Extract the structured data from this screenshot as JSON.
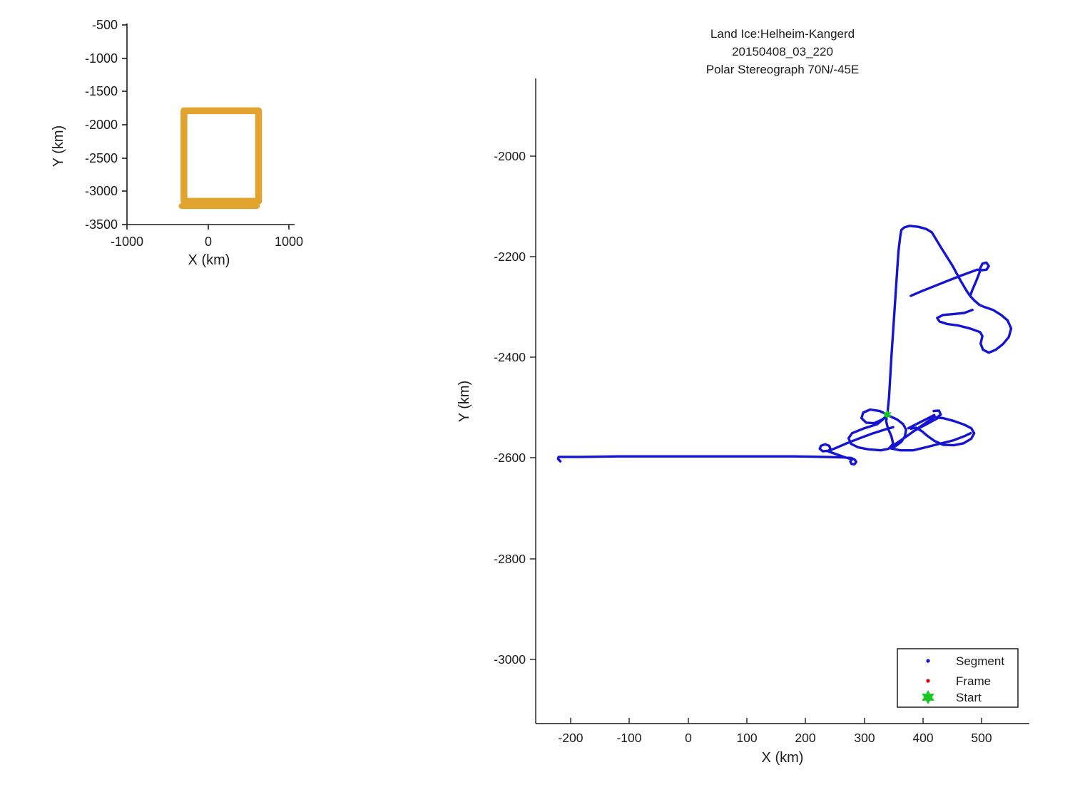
{
  "figure": {
    "background": "#ffffff"
  },
  "legend": {
    "items": [
      {
        "label": "Segment",
        "marker": "dot",
        "color": "#0f0fd8"
      },
      {
        "label": "Frame",
        "marker": "dot",
        "color": "#e00000"
      },
      {
        "label": "Start",
        "marker": "hexagram",
        "color": "#14c81f"
      }
    ]
  },
  "chart_data": {
    "type": "line",
    "main_plot": {
      "title": [
        "Land Ice:Helheim-Kangerd",
        "20150408_03_220",
        "Polar Stereograph 70N/-45E"
      ],
      "xlabel": "X (km)",
      "ylabel": "Y (km)",
      "xlim": [
        -260,
        581
      ],
      "ylim": [
        -3128,
        -1846
      ],
      "xticks": [
        -200,
        -100,
        0,
        100,
        200,
        300,
        400,
        500
      ],
      "yticks": [
        -2000,
        -2200,
        -2400,
        -2600,
        -2800,
        -3000
      ],
      "grid": false,
      "legend_position": "lower right",
      "track_color": "#1414d2",
      "start_color": "#14c81f",
      "start_point_km": [
        339,
        -2514
      ],
      "segment_polylines_km": [
        [
          [
            -218,
            -2607
          ],
          [
            -222,
            -2602
          ],
          [
            -221,
            -2598
          ],
          [
            -180,
            -2598
          ],
          [
            -120,
            -2597
          ],
          [
            -60,
            -2597
          ],
          [
            0,
            -2597
          ],
          [
            60,
            -2597
          ],
          [
            120,
            -2597
          ],
          [
            180,
            -2597
          ],
          [
            230,
            -2598
          ],
          [
            262,
            -2599
          ],
          [
            277,
            -2600
          ],
          [
            283,
            -2603
          ],
          [
            286,
            -2608
          ],
          [
            283,
            -2613
          ],
          [
            278,
            -2612
          ],
          [
            276,
            -2607
          ],
          [
            279,
            -2603
          ],
          [
            270,
            -2600
          ],
          [
            255,
            -2594
          ],
          [
            243,
            -2589
          ],
          [
            236,
            -2586
          ],
          [
            229,
            -2587
          ],
          [
            224,
            -2582
          ],
          [
            226,
            -2576
          ],
          [
            233,
            -2573
          ],
          [
            240,
            -2576
          ],
          [
            242,
            -2582
          ],
          [
            239,
            -2586
          ],
          [
            252,
            -2580
          ],
          [
            270,
            -2571
          ],
          [
            292,
            -2561
          ],
          [
            315,
            -2551
          ],
          [
            337,
            -2543
          ],
          [
            349,
            -2539
          ]
        ],
        [
          [
            339,
            -2514
          ],
          [
            326,
            -2507
          ],
          [
            310,
            -2504
          ],
          [
            298,
            -2510
          ],
          [
            295,
            -2521
          ],
          [
            303,
            -2530
          ],
          [
            317,
            -2531
          ],
          [
            330,
            -2524
          ],
          [
            338,
            -2517
          ],
          [
            322,
            -2533
          ],
          [
            298,
            -2542
          ],
          [
            279,
            -2551
          ],
          [
            273,
            -2561
          ],
          [
            277,
            -2572
          ],
          [
            289,
            -2579
          ],
          [
            307,
            -2583
          ],
          [
            328,
            -2585
          ],
          [
            341,
            -2582
          ],
          [
            349,
            -2572
          ],
          [
            346,
            -2557
          ],
          [
            340,
            -2541
          ],
          [
            337,
            -2527
          ],
          [
            339,
            -2516
          ]
        ],
        [
          [
            343,
            -2517
          ],
          [
            356,
            -2524
          ],
          [
            366,
            -2533
          ],
          [
            371,
            -2544
          ],
          [
            369,
            -2557
          ],
          [
            363,
            -2568
          ],
          [
            354,
            -2576
          ],
          [
            345,
            -2581
          ],
          [
            361,
            -2585
          ],
          [
            383,
            -2585
          ],
          [
            405,
            -2579
          ],
          [
            428,
            -2572
          ],
          [
            452,
            -2565
          ],
          [
            470,
            -2557
          ],
          [
            481,
            -2551
          ]
        ],
        [
          [
            418,
            -2507
          ],
          [
            427,
            -2506
          ],
          [
            430,
            -2514
          ],
          [
            423,
            -2520
          ],
          [
            434,
            -2521
          ],
          [
            453,
            -2527
          ],
          [
            470,
            -2534
          ],
          [
            482,
            -2541
          ],
          [
            487,
            -2551
          ],
          [
            482,
            -2562
          ],
          [
            469,
            -2571
          ],
          [
            452,
            -2575
          ],
          [
            434,
            -2574
          ],
          [
            419,
            -2566
          ],
          [
            408,
            -2557
          ],
          [
            398,
            -2547
          ],
          [
            388,
            -2540
          ],
          [
            379,
            -2542
          ]
        ],
        [
          [
            419,
            -2515
          ],
          [
            375,
            -2541
          ]
        ],
        [
          [
            425,
            -2521
          ],
          [
            382,
            -2548
          ]
        ],
        [
          [
            346,
            -2578
          ],
          [
            371,
            -2558
          ],
          [
            395,
            -2538
          ],
          [
            420,
            -2518
          ]
        ],
        [
          [
            339,
            -2514
          ],
          [
            342,
            -2480
          ],
          [
            346,
            -2400
          ],
          [
            350,
            -2330
          ],
          [
            354,
            -2260
          ],
          [
            358,
            -2190
          ],
          [
            361,
            -2160
          ],
          [
            363,
            -2147
          ],
          [
            368,
            -2142
          ],
          [
            377,
            -2139
          ],
          [
            392,
            -2141
          ],
          [
            405,
            -2145
          ],
          [
            415,
            -2152
          ],
          [
            431,
            -2183
          ],
          [
            450,
            -2218
          ],
          [
            464,
            -2248
          ],
          [
            474,
            -2268
          ],
          [
            480,
            -2278
          ],
          [
            487,
            -2287
          ],
          [
            496,
            -2296
          ],
          [
            504,
            -2300
          ],
          [
            519,
            -2306
          ],
          [
            533,
            -2316
          ],
          [
            544,
            -2327
          ],
          [
            550,
            -2343
          ],
          [
            546,
            -2360
          ],
          [
            536,
            -2374
          ],
          [
            524,
            -2385
          ],
          [
            512,
            -2391
          ],
          [
            502,
            -2385
          ],
          [
            498,
            -2373
          ],
          [
            501,
            -2358
          ],
          [
            497,
            -2350
          ],
          [
            480,
            -2343
          ],
          [
            460,
            -2337
          ],
          [
            441,
            -2334
          ],
          [
            428,
            -2329
          ],
          [
            424,
            -2322
          ],
          [
            434,
            -2316
          ],
          [
            453,
            -2314
          ],
          [
            470,
            -2312
          ],
          [
            484,
            -2306
          ]
        ],
        [
          [
            481,
            -2276
          ],
          [
            484,
            -2266
          ],
          [
            490,
            -2250
          ],
          [
            496,
            -2232
          ],
          [
            497,
            -2224
          ],
          [
            501,
            -2214
          ],
          [
            508,
            -2212
          ],
          [
            512,
            -2219
          ],
          [
            508,
            -2226
          ],
          [
            500,
            -2227
          ],
          [
            492,
            -2226
          ],
          [
            462,
            -2239
          ],
          [
            425,
            -2256
          ],
          [
            395,
            -2270
          ],
          [
            379,
            -2278
          ]
        ]
      ]
    },
    "overview_plot": {
      "xlabel": "X (km)",
      "ylabel": "Y (km)",
      "xlim": [
        -1000,
        1050
      ],
      "ylim": [
        -3500,
        -500
      ],
      "xticks": [
        -1000,
        0,
        1000
      ],
      "yticks": [
        -500,
        -1000,
        -1500,
        -2000,
        -2500,
        -3000,
        -3500
      ],
      "grid": false,
      "track_color": "#e2a42e",
      "track_extent_rect_km": {
        "x": [
          -300,
          620
        ],
        "y": [
          -3150,
          -1790
        ]
      },
      "extra_pass_km": {
        "y": -3222,
        "x": [
          -330,
          600
        ]
      }
    }
  }
}
